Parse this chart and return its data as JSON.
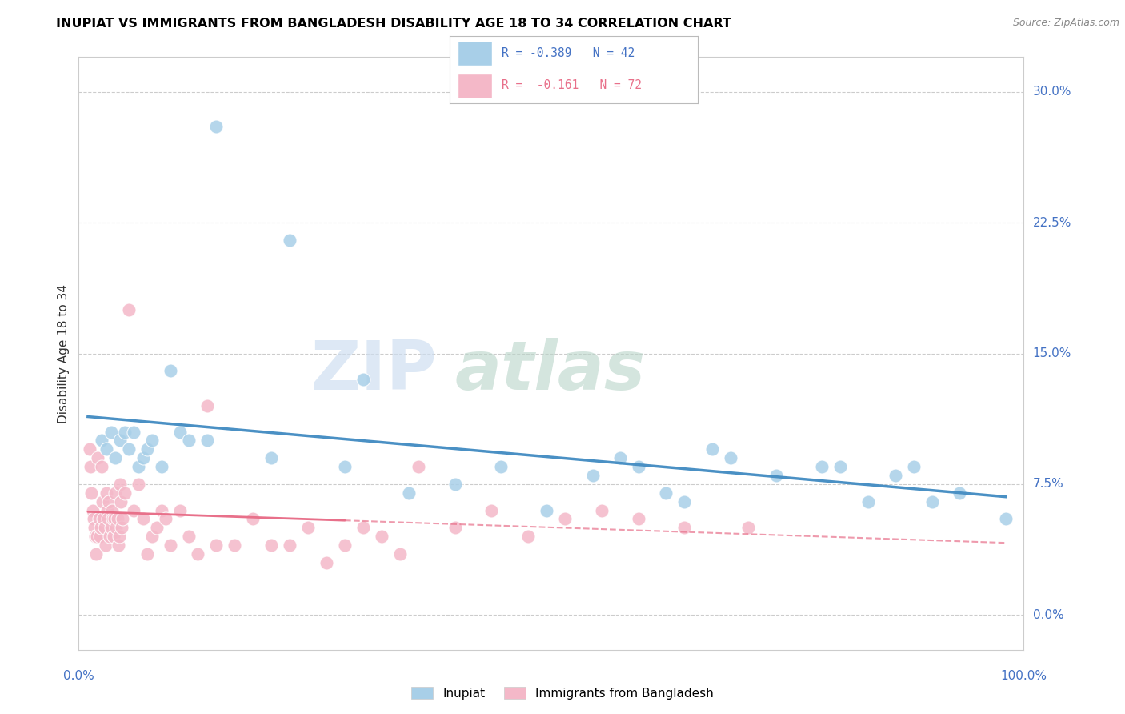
{
  "title": "INUPIAT VS IMMIGRANTS FROM BANGLADESH DISABILITY AGE 18 TO 34 CORRELATION CHART",
  "source": "Source: ZipAtlas.com",
  "ylabel": "Disability Age 18 to 34",
  "ytick_vals": [
    0.0,
    7.5,
    15.0,
    22.5,
    30.0
  ],
  "ytick_labels": [
    "0.0%",
    "7.5%",
    "15.0%",
    "22.5%",
    "30.0%"
  ],
  "legend1_label": "Inupiat",
  "legend2_label": "Immigrants from Bangladesh",
  "r1": "-0.389",
  "n1": "42",
  "r2": "-0.161",
  "n2": "72",
  "blue_scatter_color": "#a8cfe8",
  "pink_scatter_color": "#f4b8c8",
  "blue_line_color": "#4a90c4",
  "pink_line_color": "#e8708a",
  "inupiat_x": [
    1.5,
    2.0,
    2.5,
    3.0,
    3.5,
    4.0,
    4.5,
    5.0,
    5.5,
    6.0,
    6.5,
    7.0,
    8.0,
    9.0,
    10.0,
    11.0,
    13.0,
    14.0,
    20.0,
    22.0,
    28.0,
    30.0,
    35.0,
    40.0,
    45.0,
    50.0,
    55.0,
    58.0,
    60.0,
    63.0,
    65.0,
    68.0,
    70.0,
    75.0,
    80.0,
    82.0,
    85.0,
    88.0,
    90.0,
    92.0,
    95.0,
    100.0
  ],
  "inupiat_y": [
    10.0,
    9.5,
    10.5,
    9.0,
    10.0,
    10.5,
    9.5,
    10.5,
    8.5,
    9.0,
    9.5,
    10.0,
    8.5,
    14.0,
    10.5,
    10.0,
    10.0,
    28.0,
    9.0,
    21.5,
    8.5,
    13.5,
    7.0,
    7.5,
    8.5,
    6.0,
    8.0,
    9.0,
    8.5,
    7.0,
    6.5,
    9.5,
    9.0,
    8.0,
    8.5,
    8.5,
    6.5,
    8.0,
    8.5,
    6.5,
    7.0,
    5.5
  ],
  "bangladesh_x": [
    0.2,
    0.3,
    0.4,
    0.5,
    0.6,
    0.7,
    0.8,
    0.9,
    1.0,
    1.1,
    1.2,
    1.3,
    1.4,
    1.5,
    1.6,
    1.7,
    1.8,
    1.9,
    2.0,
    2.1,
    2.2,
    2.3,
    2.4,
    2.5,
    2.6,
    2.7,
    2.8,
    2.9,
    3.0,
    3.1,
    3.2,
    3.3,
    3.4,
    3.5,
    3.6,
    3.7,
    3.8,
    4.0,
    4.5,
    5.0,
    5.5,
    6.0,
    6.5,
    7.0,
    7.5,
    8.0,
    8.5,
    9.0,
    10.0,
    11.0,
    12.0,
    13.0,
    14.0,
    16.0,
    18.0,
    20.0,
    22.0,
    24.0,
    26.0,
    28.0,
    30.0,
    32.0,
    34.0,
    36.0,
    40.0,
    44.0,
    48.0,
    52.0,
    56.0,
    60.0,
    65.0,
    72.0
  ],
  "bangladesh_y": [
    9.5,
    8.5,
    7.0,
    6.0,
    5.5,
    5.0,
    4.5,
    3.5,
    4.5,
    9.0,
    5.5,
    4.5,
    5.0,
    8.5,
    6.5,
    5.5,
    5.0,
    4.0,
    7.0,
    6.0,
    5.5,
    6.5,
    4.5,
    5.0,
    6.0,
    5.5,
    4.5,
    5.5,
    7.0,
    5.0,
    5.5,
    4.0,
    4.5,
    7.5,
    6.5,
    5.0,
    5.5,
    7.0,
    17.5,
    6.0,
    7.5,
    5.5,
    3.5,
    4.5,
    5.0,
    6.0,
    5.5,
    4.0,
    6.0,
    4.5,
    3.5,
    12.0,
    4.0,
    4.0,
    5.5,
    4.0,
    4.0,
    5.0,
    3.0,
    4.0,
    5.0,
    4.5,
    3.5,
    8.5,
    5.0,
    6.0,
    4.5,
    5.5,
    6.0,
    5.5,
    5.0,
    5.0
  ],
  "xlim": [
    -1,
    102
  ],
  "ylim": [
    -2,
    32
  ],
  "xaxis_left_label": "0.0%",
  "xaxis_right_label": "100.0%"
}
